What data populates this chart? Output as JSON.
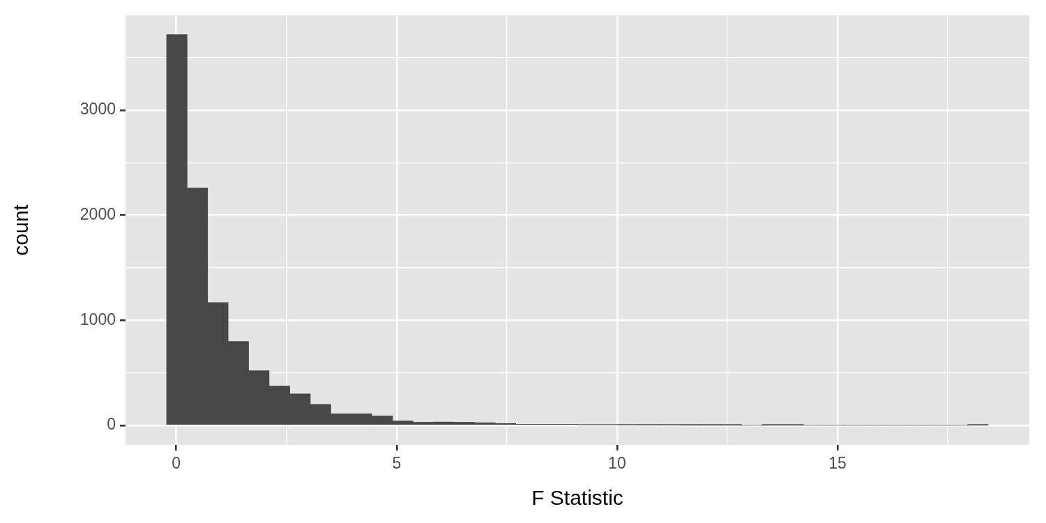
{
  "chart_data": {
    "type": "histogram",
    "xlabel": "F Statistic",
    "ylabel": "count",
    "color": "#474747",
    "bins": [
      -0.22,
      0.25,
      0.71,
      1.18,
      1.64,
      2.11,
      2.58,
      3.04,
      3.51,
      3.97,
      4.44,
      4.91,
      5.37,
      5.84,
      6.3,
      6.77,
      7.24,
      7.7,
      8.17,
      8.63,
      9.1,
      9.57,
      10.03,
      10.5,
      10.96,
      11.43,
      11.9,
      12.36,
      12.83,
      13.29,
      13.76,
      14.23,
      14.69,
      15.16,
      15.62,
      16.09,
      16.56,
      17.02,
      17.49,
      17.95,
      18.42
    ],
    "values": [
      3720,
      2260,
      1170,
      800,
      520,
      375,
      300,
      200,
      110,
      110,
      90,
      42,
      30,
      32,
      30,
      25,
      18,
      11,
      11,
      11,
      5,
      5,
      3,
      2,
      2,
      1,
      1,
      1,
      0,
      1,
      1,
      0,
      0,
      0,
      0,
      0,
      0,
      0,
      0,
      1
    ],
    "xlim": [
      -1.15,
      19.35
    ],
    "ylim": [
      -186,
      3903
    ],
    "xticks": [
      0,
      {
        "value": 2.5,
        "label": null
      },
      5,
      {
        "value": 7.5,
        "label": null
      },
      10,
      {
        "value": 12.5,
        "label": null
      },
      15,
      {
        "value": 17.5,
        "label": null
      }
    ],
    "yticks": [
      0,
      {
        "value": 500,
        "label": null
      },
      1000,
      {
        "value": 1500,
        "label": null
      },
      2000,
      {
        "value": 2500,
        "label": null
      },
      3000,
      {
        "value": 3500,
        "label": null
      }
    ],
    "grid": true,
    "legend": false
  }
}
